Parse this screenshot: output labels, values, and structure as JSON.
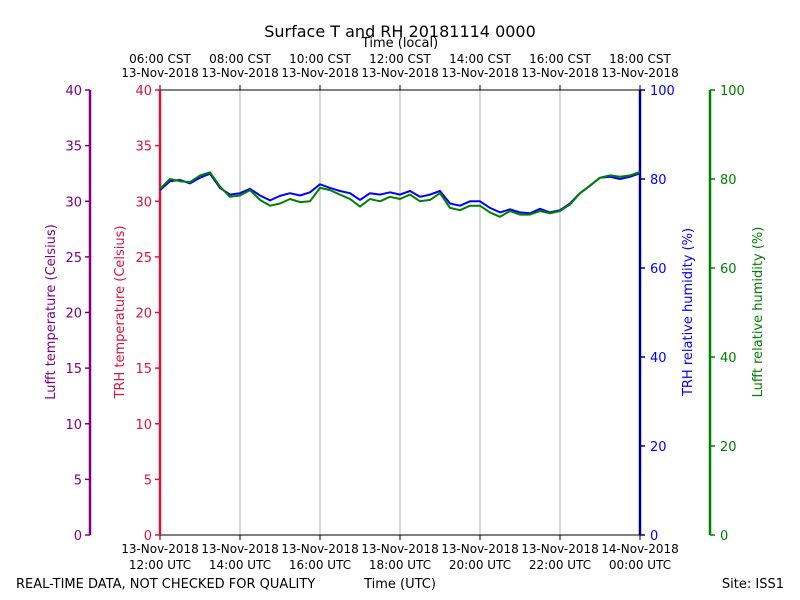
{
  "colors": {
    "lufft_temp": "#800080",
    "trh_temp": "#dc143c",
    "trh_rh": "#0000ff",
    "lufft_rh": "#008000",
    "grid": "#b0b0b0",
    "text": "#000000"
  },
  "chart_data": {
    "type": "line",
    "title": "Surface T and RH 20181114 0000",
    "top_axis_label": "Time (local)",
    "xlabel": "Time (UTC)",
    "footer_left": "REAL-TIME DATA, NOT CHECKED FOR QUALITY",
    "footer_right": "Site: ISS1",
    "grid": "vertical",
    "x_range_hours": [
      12,
      24
    ],
    "x_bottom_ticks": [
      {
        "hour": 12,
        "line1": "13-Nov-2018",
        "line2": "12:00 UTC"
      },
      {
        "hour": 14,
        "line1": "13-Nov-2018",
        "line2": "14:00 UTC"
      },
      {
        "hour": 16,
        "line1": "13-Nov-2018",
        "line2": "16:00 UTC"
      },
      {
        "hour": 18,
        "line1": "13-Nov-2018",
        "line2": "18:00 UTC"
      },
      {
        "hour": 20,
        "line1": "13-Nov-2018",
        "line2": "20:00 UTC"
      },
      {
        "hour": 22,
        "line1": "13-Nov-2018",
        "line2": "22:00 UTC"
      },
      {
        "hour": 24,
        "line1": "14-Nov-2018",
        "line2": "00:00 UTC"
      }
    ],
    "x_top_ticks": [
      {
        "hour": 12,
        "line1": "06:00 CST",
        "line2": "13-Nov-2018"
      },
      {
        "hour": 14,
        "line1": "08:00 CST",
        "line2": "13-Nov-2018"
      },
      {
        "hour": 16,
        "line1": "10:00 CST",
        "line2": "13-Nov-2018"
      },
      {
        "hour": 18,
        "line1": "12:00 CST",
        "line2": "13-Nov-2018"
      },
      {
        "hour": 20,
        "line1": "14:00 CST",
        "line2": "13-Nov-2018"
      },
      {
        "hour": 22,
        "line1": "16:00 CST",
        "line2": "13-Nov-2018"
      },
      {
        "hour": 24,
        "line1": "18:00 CST",
        "line2": "13-Nov-2018"
      }
    ],
    "axes": {
      "lufft_temp": {
        "label": "Lufft temperature (Celsius)",
        "range": [
          0,
          40
        ],
        "ticks": [
          0,
          5,
          10,
          15,
          20,
          25,
          30,
          35,
          40
        ]
      },
      "trh_temp": {
        "label": "TRH temperature (Celsius)",
        "range": [
          0,
          40
        ],
        "ticks": [
          0,
          5,
          10,
          15,
          20,
          25,
          30,
          35,
          40
        ]
      },
      "trh_rh": {
        "label": "TRH relative humidity (%)",
        "range": [
          0,
          100
        ],
        "ticks": [
          0,
          20,
          40,
          60,
          80,
          100
        ]
      },
      "lufft_rh": {
        "label": "Lufft relative humidity (%)",
        "range": [
          0,
          100
        ],
        "ticks": [
          0,
          20,
          40,
          60,
          80,
          100
        ]
      }
    },
    "series": [
      {
        "name": "TRH relative humidity",
        "axis": "trh_rh",
        "x_hours": [
          12.0,
          12.25,
          12.5,
          12.75,
          13.0,
          13.25,
          13.5,
          13.75,
          14.0,
          14.25,
          14.5,
          14.75,
          15.0,
          15.25,
          15.5,
          15.75,
          16.0,
          16.25,
          16.5,
          16.75,
          17.0,
          17.25,
          17.5,
          17.75,
          18.0,
          18.25,
          18.5,
          18.75,
          19.0,
          19.25,
          19.5,
          19.75,
          20.0,
          20.25,
          20.5,
          20.75,
          21.0,
          21.25,
          21.5,
          21.75,
          22.0,
          22.25,
          22.5,
          22.75,
          23.0,
          23.25,
          23.5,
          23.75,
          24.0
        ],
        "values": [
          77.5,
          79.5,
          79.8,
          79.0,
          80.3,
          81.2,
          78.0,
          76.5,
          76.8,
          77.8,
          76.3,
          75.2,
          76.2,
          76.8,
          76.3,
          77.0,
          78.8,
          78.0,
          77.3,
          76.8,
          75.3,
          76.8,
          76.5,
          77.0,
          76.5,
          77.3,
          76.0,
          76.5,
          77.3,
          74.5,
          74.0,
          75.0,
          75.0,
          73.5,
          72.5,
          73.2,
          72.5,
          72.3,
          73.3,
          72.5,
          73.0,
          74.5,
          76.8,
          78.5,
          80.3,
          80.5,
          80.0,
          80.5,
          81.3
        ]
      },
      {
        "name": "Lufft relative humidity",
        "axis": "lufft_rh",
        "x_hours": [
          12.0,
          12.25,
          12.5,
          12.75,
          13.0,
          13.25,
          13.5,
          13.75,
          14.0,
          14.25,
          14.5,
          14.75,
          15.0,
          15.25,
          15.5,
          15.75,
          16.0,
          16.25,
          16.5,
          16.75,
          17.0,
          17.25,
          17.5,
          17.75,
          18.0,
          18.25,
          18.5,
          18.75,
          19.0,
          19.25,
          19.5,
          19.75,
          20.0,
          20.25,
          20.5,
          20.75,
          21.0,
          21.25,
          21.5,
          21.75,
          22.0,
          22.25,
          22.5,
          22.75,
          23.0,
          23.25,
          23.5,
          23.75,
          24.0
        ],
        "values": [
          77.8,
          80.0,
          79.5,
          79.3,
          80.8,
          81.5,
          78.3,
          76.0,
          76.3,
          77.5,
          75.3,
          74.0,
          74.5,
          75.5,
          74.8,
          75.0,
          78.0,
          77.5,
          76.5,
          75.5,
          73.8,
          75.5,
          75.0,
          76.0,
          75.5,
          76.5,
          75.0,
          75.3,
          76.8,
          73.5,
          73.0,
          74.0,
          74.0,
          72.5,
          71.5,
          72.8,
          72.0,
          72.0,
          72.8,
          72.3,
          72.8,
          74.3,
          76.8,
          78.5,
          80.3,
          80.8,
          80.5,
          80.8,
          81.6
        ]
      }
    ]
  }
}
